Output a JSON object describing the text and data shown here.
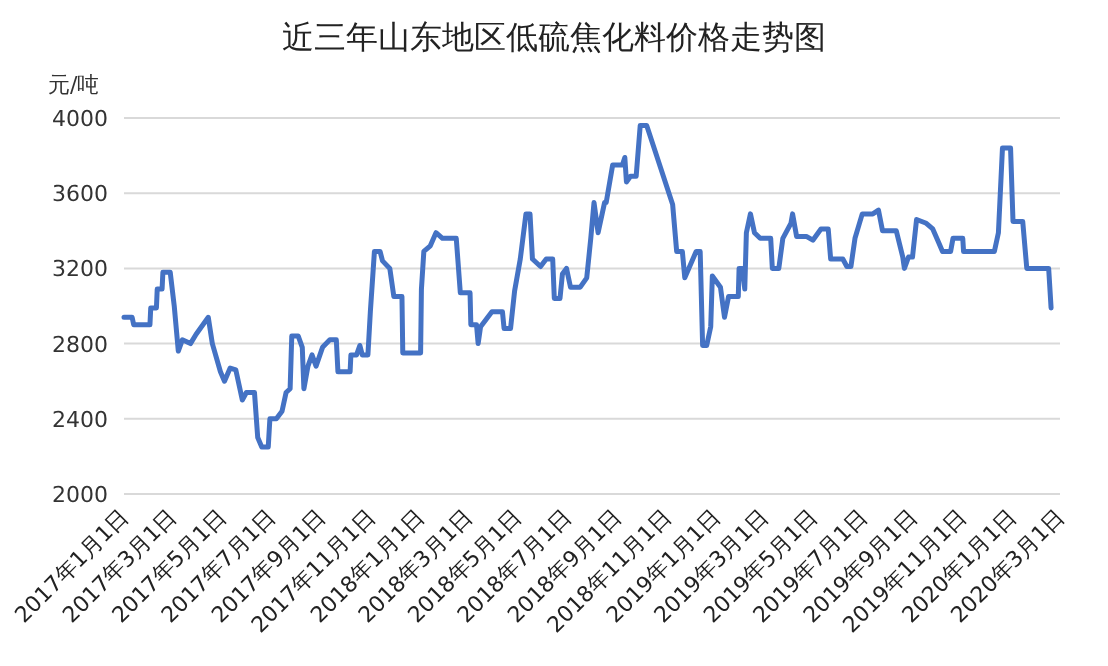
{
  "chart_data": {
    "type": "line",
    "title": "近三年山东地区低硫焦化料价格走势图",
    "ylabel": "元/吨",
    "x": [
      "2017-01-01",
      "2017-01-11",
      "2017-01-13",
      "2017-02-02",
      "2017-02-03",
      "2017-02-10",
      "2017-02-11",
      "2017-02-17",
      "2017-02-18",
      "2017-02-27",
      "2017-03-04",
      "2017-03-09",
      "2017-03-14",
      "2017-03-24",
      "2017-03-31",
      "2017-04-15",
      "2017-04-20",
      "2017-04-30",
      "2017-05-05",
      "2017-05-12",
      "2017-05-19",
      "2017-05-27",
      "2017-06-01",
      "2017-06-11",
      "2017-06-15",
      "2017-06-20",
      "2017-06-28",
      "2017-06-30",
      "2017-07-08",
      "2017-07-15",
      "2017-07-20",
      "2017-07-25",
      "2017-07-27",
      "2017-08-04",
      "2017-08-09",
      "2017-08-11",
      "2017-08-16",
      "2017-08-21",
      "2017-08-26",
      "2017-09-03",
      "2017-09-12",
      "2017-09-20",
      "2017-09-22",
      "2017-10-07",
      "2017-10-08",
      "2017-10-15",
      "2017-10-19",
      "2017-10-22",
      "2017-10-29",
      "2017-11-01",
      "2017-11-06",
      "2017-11-13",
      "2017-11-16",
      "2017-11-25",
      "2017-11-30",
      "2017-12-10",
      "2017-12-11",
      "2018-01-02",
      "2018-01-03",
      "2018-01-06",
      "2018-01-14",
      "2018-01-21",
      "2018-01-29",
      "2018-02-15",
      "2018-02-20",
      "2018-03-04",
      "2018-03-05",
      "2018-03-12",
      "2018-03-14",
      "2018-03-17",
      "2018-03-24",
      "2018-03-31",
      "2018-04-13",
      "2018-04-15",
      "2018-04-23",
      "2018-04-28",
      "2018-05-05",
      "2018-05-12",
      "2018-05-17",
      "2018-05-20",
      "2018-05-30",
      "2018-06-06",
      "2018-06-14",
      "2018-06-16",
      "2018-06-23",
      "2018-06-26",
      "2018-07-01",
      "2018-07-06",
      "2018-07-18",
      "2018-07-26",
      "2018-07-31",
      "2018-08-04",
      "2018-08-09",
      "2018-08-17",
      "2018-08-19",
      "2018-08-27",
      "2018-09-08",
      "2018-09-11",
      "2018-09-13",
      "2018-09-18",
      "2018-09-25",
      "2018-09-30",
      "2018-10-08",
      "2018-11-09",
      "2018-11-14",
      "2018-11-21",
      "2018-11-24",
      "2018-12-08",
      "2018-12-13",
      "2018-12-16",
      "2018-12-21",
      "2018-12-26",
      "2018-12-28",
      "2019-01-07",
      "2019-01-12",
      "2019-01-17",
      "2019-01-29",
      "2019-01-30",
      "2019-02-03",
      "2019-02-06",
      "2019-02-08",
      "2019-02-13",
      "2019-02-18",
      "2019-02-25",
      "2019-03-10",
      "2019-03-12",
      "2019-03-20",
      "2019-03-25",
      "2019-04-04",
      "2019-04-06",
      "2019-04-11",
      "2019-04-23",
      "2019-05-01",
      "2019-05-11",
      "2019-05-20",
      "2019-05-23",
      "2019-06-07",
      "2019-06-12",
      "2019-06-17",
      "2019-06-22",
      "2019-07-01",
      "2019-07-14",
      "2019-07-21",
      "2019-07-26",
      "2019-08-12",
      "2019-08-20",
      "2019-08-22",
      "2019-08-27",
      "2019-09-01",
      "2019-09-06",
      "2019-09-18",
      "2019-09-26",
      "2019-10-03",
      "2019-10-08",
      "2019-10-18",
      "2019-10-21",
      "2019-11-02",
      "2019-11-03",
      "2019-12-11",
      "2019-12-16",
      "2019-12-21",
      "2019-12-31",
      "2020-01-03",
      "2020-01-15",
      "2020-01-20",
      "2020-02-16",
      "2020-02-19"
    ],
    "series": [
      {
        "color": "#4472c4",
        "values": [
          2940,
          2940,
          2900,
          2900,
          2990,
          2990,
          3090,
          3090,
          3180,
          3180,
          3000,
          2760,
          2820,
          2800,
          2850,
          2940,
          2800,
          2650,
          2600,
          2670,
          2660,
          2500,
          2540,
          2540,
          2300,
          2250,
          2250,
          2400,
          2400,
          2440,
          2540,
          2560,
          2840,
          2840,
          2780,
          2560,
          2680,
          2740,
          2680,
          2780,
          2820,
          2820,
          2650,
          2650,
          2740,
          2740,
          2790,
          2740,
          2740,
          2970,
          3290,
          3290,
          3240,
          3200,
          3050,
          3050,
          2750,
          2750,
          3090,
          3290,
          3320,
          3390,
          3360,
          3360,
          3070,
          3070,
          2900,
          2900,
          2800,
          2890,
          2930,
          2970,
          2970,
          2880,
          2880,
          3080,
          3250,
          3490,
          3490,
          3250,
          3210,
          3250,
          3250,
          3040,
          3040,
          3170,
          3200,
          3100,
          3100,
          3150,
          3360,
          3550,
          3390,
          3550,
          3550,
          3750,
          3750,
          3790,
          3660,
          3690,
          3690,
          3960,
          3960,
          3540,
          3290,
          3290,
          3150,
          3290,
          3290,
          2790,
          2790,
          2890,
          3160,
          3100,
          2940,
          3050,
          3050,
          3200,
          3200,
          3090,
          3390,
          3490,
          3390,
          3360,
          3360,
          3200,
          3200,
          3360,
          3440,
          3490,
          3370,
          3370,
          3350,
          3410,
          3410,
          3250,
          3250,
          3210,
          3210,
          3360,
          3490,
          3490,
          3510,
          3400,
          3400,
          3260,
          3200,
          3260,
          3260,
          3460,
          3440,
          3410,
          3340,
          3290,
          3290,
          3360,
          3360,
          3290,
          3290,
          3390,
          3840,
          3840,
          3450,
          3450,
          3200,
          3200,
          2990
        ]
      }
    ],
    "xlim": [
      "2017-01-01",
      "2020-03-01"
    ],
    "xticks": [
      {
        "value": "2017-01-01",
        "label": "2017年1月1日"
      },
      {
        "value": "2017-03-01",
        "label": "2017年3月1日"
      },
      {
        "value": "2017-05-01",
        "label": "2017年5月1日"
      },
      {
        "value": "2017-07-01",
        "label": "2017年7月1日"
      },
      {
        "value": "2017-09-01",
        "label": "2017年9月1日"
      },
      {
        "value": "2017-11-01",
        "label": "2017年11月1日"
      },
      {
        "value": "2018-01-01",
        "label": "2018年1月1日"
      },
      {
        "value": "2018-03-01",
        "label": "2018年3月1日"
      },
      {
        "value": "2018-05-01",
        "label": "2018年5月1日"
      },
      {
        "value": "2018-07-01",
        "label": "2018年7月1日"
      },
      {
        "value": "2018-09-01",
        "label": "2018年9月1日"
      },
      {
        "value": "2018-11-01",
        "label": "2018年11月1日"
      },
      {
        "value": "2019-01-01",
        "label": "2019年1月1日"
      },
      {
        "value": "2019-03-01",
        "label": "2019年3月1日"
      },
      {
        "value": "2019-05-01",
        "label": "2019年5月1日"
      },
      {
        "value": "2019-07-01",
        "label": "2019年7月1日"
      },
      {
        "value": "2019-09-01",
        "label": "2019年9月1日"
      },
      {
        "value": "2019-11-01",
        "label": "2019年11月1日"
      },
      {
        "value": "2020-01-01",
        "label": "2020年1月1日"
      },
      {
        "value": "2020-03-01",
        "label": "2020年3月1日"
      }
    ],
    "ylim": [
      2000,
      4000
    ],
    "yticks": [
      2000,
      2400,
      2800,
      3200,
      3600,
      4000
    ],
    "grid": "y",
    "marker": "none",
    "line_style": "solid"
  }
}
